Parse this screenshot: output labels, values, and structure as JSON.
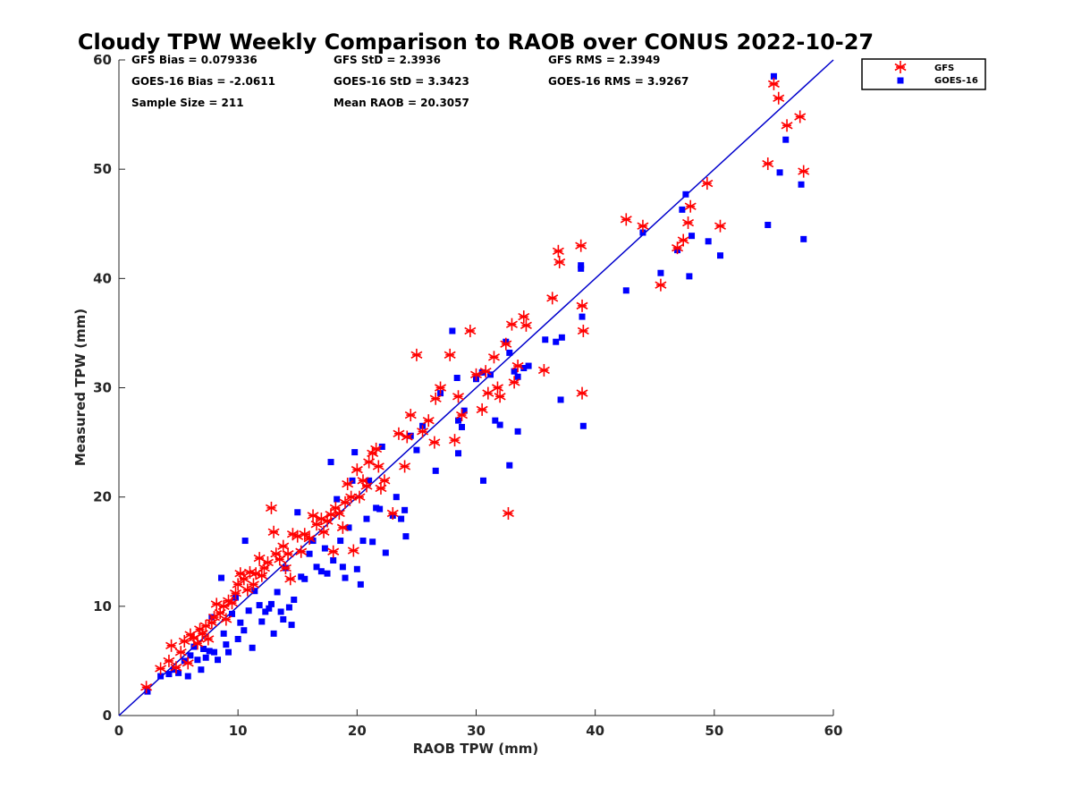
{
  "chart_data": {
    "type": "scatter",
    "title": "Cloudy TPW Weekly Comparison to RAOB over CONUS 2022-10-27",
    "xlabel": "RAOB TPW (mm)",
    "ylabel": "Measured TPW (mm)",
    "xlim": [
      0,
      60
    ],
    "ylim": [
      0,
      60
    ],
    "xticks": [
      0,
      10,
      20,
      30,
      40,
      50,
      60
    ],
    "yticks": [
      0,
      10,
      20,
      30,
      40,
      50,
      60
    ],
    "grid": false,
    "legend_position": "outside-top-right",
    "reference_line": {
      "slope": 1,
      "intercept": 0,
      "color": "#0000cc"
    },
    "stats": {
      "gfs_bias": "GFS Bias = 0.079336",
      "goes_bias": "GOES-16 Bias = -2.0611",
      "sample_size": "Sample Size = 211",
      "gfs_std": "GFS StD = 2.3936",
      "goes_std": "GOES-16 StD = 3.3423",
      "mean_raob": "Mean RAOB = 20.3057",
      "gfs_rms": "GFS RMS = 2.3949",
      "goes_rms": "GOES-16 RMS = 3.9267"
    },
    "series": [
      {
        "name": "GFS",
        "marker": "asterisk",
        "color": "#ff0000",
        "points": [
          [
            2.3,
            2.6
          ],
          [
            3.5,
            4.3
          ],
          [
            4.2,
            5.0
          ],
          [
            4.4,
            6.4
          ],
          [
            4.8,
            4.4
          ],
          [
            5.2,
            5.8
          ],
          [
            5.5,
            6.8
          ],
          [
            5.8,
            4.8
          ],
          [
            6.0,
            7.4
          ],
          [
            6.3,
            7.1
          ],
          [
            6.6,
            6.6
          ],
          [
            6.8,
            7.9
          ],
          [
            7.0,
            7.5
          ],
          [
            7.3,
            8.2
          ],
          [
            7.5,
            7.0
          ],
          [
            7.8,
            8.5
          ],
          [
            8.0,
            9.0
          ],
          [
            8.2,
            10.2
          ],
          [
            8.5,
            9.4
          ],
          [
            8.8,
            10.0
          ],
          [
            9.0,
            8.8
          ],
          [
            9.2,
            10.5
          ],
          [
            9.5,
            10.3
          ],
          [
            9.8,
            11.2
          ],
          [
            10.0,
            12.0
          ],
          [
            10.2,
            13.0
          ],
          [
            10.5,
            12.5
          ],
          [
            10.8,
            11.5
          ],
          [
            11.0,
            13.1
          ],
          [
            11.3,
            12.0
          ],
          [
            11.5,
            13.0
          ],
          [
            11.8,
            14.4
          ],
          [
            12.0,
            12.8
          ],
          [
            12.2,
            13.5
          ],
          [
            12.5,
            14.0
          ],
          [
            12.8,
            19.0
          ],
          [
            13.0,
            16.8
          ],
          [
            13.2,
            14.8
          ],
          [
            13.5,
            14.3
          ],
          [
            13.8,
            15.5
          ],
          [
            14.0,
            13.5
          ],
          [
            14.2,
            14.8
          ],
          [
            14.4,
            12.5
          ],
          [
            14.6,
            16.6
          ],
          [
            15.0,
            16.4
          ],
          [
            15.3,
            15.0
          ],
          [
            15.6,
            16.6
          ],
          [
            16.0,
            16.2
          ],
          [
            16.3,
            18.3
          ],
          [
            16.6,
            17.5
          ],
          [
            17.0,
            18.0
          ],
          [
            17.2,
            16.8
          ],
          [
            17.5,
            17.8
          ],
          [
            17.8,
            18.4
          ],
          [
            18.0,
            15.0
          ],
          [
            18.2,
            19.0
          ],
          [
            18.5,
            18.5
          ],
          [
            18.8,
            17.2
          ],
          [
            19.0,
            19.5
          ],
          [
            19.2,
            21.2
          ],
          [
            19.5,
            20.0
          ],
          [
            19.7,
            15.1
          ],
          [
            20.0,
            22.5
          ],
          [
            20.2,
            20.0
          ],
          [
            20.5,
            21.5
          ],
          [
            20.8,
            21.0
          ],
          [
            21.0,
            23.2
          ],
          [
            21.3,
            24.0
          ],
          [
            21.6,
            24.4
          ],
          [
            21.8,
            22.8
          ],
          [
            22.0,
            20.8
          ],
          [
            22.3,
            21.5
          ],
          [
            23.0,
            18.5
          ],
          [
            23.5,
            25.8
          ],
          [
            24.0,
            22.8
          ],
          [
            24.2,
            25.5
          ],
          [
            24.5,
            27.5
          ],
          [
            25.0,
            33.0
          ],
          [
            25.5,
            26.0
          ],
          [
            26.0,
            27.0
          ],
          [
            26.5,
            25.0
          ],
          [
            26.6,
            29.0
          ],
          [
            27.0,
            30.0
          ],
          [
            27.8,
            33.0
          ],
          [
            28.2,
            25.2
          ],
          [
            28.5,
            29.2
          ],
          [
            28.8,
            27.5
          ],
          [
            29.5,
            35.2
          ],
          [
            30.0,
            31.2
          ],
          [
            30.5,
            28.0
          ],
          [
            30.8,
            31.5
          ],
          [
            31.0,
            29.5
          ],
          [
            31.5,
            32.8
          ],
          [
            31.8,
            30.0
          ],
          [
            32.0,
            29.2
          ],
          [
            32.5,
            34.0
          ],
          [
            32.7,
            18.5
          ],
          [
            33.0,
            35.8
          ],
          [
            33.2,
            30.5
          ],
          [
            33.5,
            32.0
          ],
          [
            34.0,
            36.5
          ],
          [
            34.2,
            35.7
          ],
          [
            35.7,
            31.6
          ],
          [
            36.4,
            38.2
          ],
          [
            36.9,
            42.5
          ],
          [
            37.0,
            41.5
          ],
          [
            38.8,
            43.0
          ],
          [
            38.9,
            37.5
          ],
          [
            39.0,
            35.2
          ],
          [
            38.9,
            29.5
          ],
          [
            42.6,
            45.4
          ],
          [
            44.0,
            44.8
          ],
          [
            45.5,
            39.4
          ],
          [
            46.9,
            42.8
          ],
          [
            47.4,
            43.5
          ],
          [
            47.8,
            45.1
          ],
          [
            48.0,
            46.6
          ],
          [
            49.4,
            48.7
          ],
          [
            50.5,
            44.8
          ],
          [
            54.5,
            50.5
          ],
          [
            55.0,
            57.8
          ],
          [
            55.4,
            56.5
          ],
          [
            56.1,
            54.0
          ],
          [
            57.2,
            54.8
          ],
          [
            57.5,
            49.8
          ]
        ]
      },
      {
        "name": "GOES-16",
        "marker": "square",
        "color": "#0000ff",
        "points": [
          [
            2.4,
            2.2
          ],
          [
            3.5,
            3.6
          ],
          [
            4.2,
            3.8
          ],
          [
            4.6,
            4.2
          ],
          [
            5.0,
            3.9
          ],
          [
            5.5,
            5.0
          ],
          [
            5.8,
            3.6
          ],
          [
            6.0,
            5.5
          ],
          [
            6.3,
            6.3
          ],
          [
            6.6,
            5.1
          ],
          [
            6.9,
            4.2
          ],
          [
            7.1,
            6.1
          ],
          [
            7.3,
            5.3
          ],
          [
            7.6,
            5.9
          ],
          [
            7.8,
            9.0
          ],
          [
            8.0,
            5.8
          ],
          [
            8.3,
            5.1
          ],
          [
            8.6,
            12.6
          ],
          [
            8.8,
            7.5
          ],
          [
            9.0,
            6.5
          ],
          [
            9.2,
            5.8
          ],
          [
            9.5,
            9.3
          ],
          [
            9.8,
            10.8
          ],
          [
            10.0,
            7.0
          ],
          [
            10.2,
            8.5
          ],
          [
            10.5,
            7.8
          ],
          [
            10.6,
            16.0
          ],
          [
            10.9,
            9.6
          ],
          [
            11.2,
            6.2
          ],
          [
            11.4,
            11.4
          ],
          [
            11.8,
            10.1
          ],
          [
            12.0,
            8.6
          ],
          [
            12.3,
            9.5
          ],
          [
            12.6,
            9.8
          ],
          [
            12.8,
            10.2
          ],
          [
            13.0,
            7.5
          ],
          [
            13.3,
            11.3
          ],
          [
            13.6,
            9.5
          ],
          [
            13.8,
            8.8
          ],
          [
            14.0,
            13.5
          ],
          [
            14.3,
            9.9
          ],
          [
            14.5,
            8.3
          ],
          [
            14.7,
            10.6
          ],
          [
            15.0,
            18.6
          ],
          [
            15.3,
            12.7
          ],
          [
            15.6,
            12.5
          ],
          [
            16.0,
            14.8
          ],
          [
            16.3,
            16.0
          ],
          [
            16.6,
            13.6
          ],
          [
            17.0,
            13.2
          ],
          [
            17.3,
            15.3
          ],
          [
            17.5,
            13.0
          ],
          [
            17.8,
            23.2
          ],
          [
            18.0,
            14.2
          ],
          [
            18.3,
            19.8
          ],
          [
            18.6,
            16.0
          ],
          [
            18.8,
            13.6
          ],
          [
            19.0,
            12.6
          ],
          [
            19.3,
            17.2
          ],
          [
            19.6,
            21.5
          ],
          [
            19.8,
            24.1
          ],
          [
            20.0,
            13.4
          ],
          [
            20.3,
            12.0
          ],
          [
            20.5,
            16.0
          ],
          [
            20.8,
            18.0
          ],
          [
            21.0,
            21.5
          ],
          [
            21.3,
            15.9
          ],
          [
            21.6,
            19.0
          ],
          [
            21.9,
            18.9
          ],
          [
            22.1,
            24.6
          ],
          [
            22.4,
            14.9
          ],
          [
            23.0,
            18.3
          ],
          [
            23.3,
            20.0
          ],
          [
            23.7,
            18.0
          ],
          [
            24.0,
            18.8
          ],
          [
            24.1,
            16.4
          ],
          [
            24.5,
            25.6
          ],
          [
            25.0,
            24.3
          ],
          [
            25.5,
            26.5
          ],
          [
            26.6,
            22.4
          ],
          [
            27.0,
            29.5
          ],
          [
            28.0,
            35.2
          ],
          [
            28.4,
            30.9
          ],
          [
            28.5,
            27.0
          ],
          [
            28.5,
            24.0
          ],
          [
            28.8,
            26.4
          ],
          [
            29.0,
            27.9
          ],
          [
            30.0,
            30.8
          ],
          [
            30.5,
            31.4
          ],
          [
            30.6,
            21.5
          ],
          [
            31.2,
            31.2
          ],
          [
            31.6,
            27.0
          ],
          [
            32.0,
            26.6
          ],
          [
            32.5,
            34.2
          ],
          [
            32.8,
            22.9
          ],
          [
            32.8,
            33.2
          ],
          [
            33.2,
            31.5
          ],
          [
            33.5,
            31.0
          ],
          [
            33.5,
            26.0
          ],
          [
            34.0,
            31.8
          ],
          [
            34.4,
            32.0
          ],
          [
            35.8,
            34.4
          ],
          [
            36.7,
            34.2
          ],
          [
            37.2,
            34.6
          ],
          [
            37.1,
            28.9
          ],
          [
            38.8,
            40.9
          ],
          [
            38.8,
            41.2
          ],
          [
            38.9,
            36.5
          ],
          [
            39.0,
            26.5
          ],
          [
            42.6,
            38.9
          ],
          [
            44.0,
            44.2
          ],
          [
            45.5,
            40.5
          ],
          [
            46.9,
            42.6
          ],
          [
            47.3,
            46.3
          ],
          [
            47.6,
            47.7
          ],
          [
            47.9,
            40.2
          ],
          [
            48.1,
            43.9
          ],
          [
            49.5,
            43.4
          ],
          [
            50.5,
            42.1
          ],
          [
            54.5,
            44.9
          ],
          [
            55.0,
            58.5
          ],
          [
            55.5,
            49.7
          ],
          [
            56.0,
            52.7
          ],
          [
            57.3,
            48.6
          ],
          [
            57.5,
            43.6
          ]
        ]
      }
    ]
  }
}
